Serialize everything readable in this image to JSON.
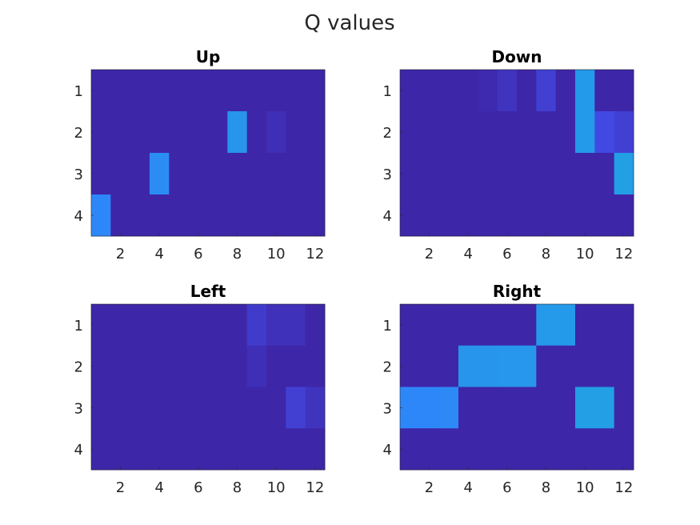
{
  "figure": {
    "title": "Q values"
  },
  "chart_data": [
    {
      "type": "heatmap",
      "title": "Up",
      "xlim": [
        0.5,
        12.5
      ],
      "ylim": [
        0.5,
        4.5
      ],
      "x_ticks": [
        "2",
        "4",
        "6",
        "8",
        "10",
        "12"
      ],
      "y_ticks": [
        "1",
        "2",
        "3",
        "4"
      ],
      "rows": 4,
      "cols": 12,
      "values": [
        [
          0,
          0,
          0,
          0,
          0,
          0,
          0,
          0,
          0,
          0,
          0,
          0
        ],
        [
          0,
          0,
          0,
          0,
          0,
          0,
          0,
          0.62,
          0,
          0.05,
          0,
          0
        ],
        [
          0,
          0,
          0,
          0.55,
          0,
          0,
          0,
          0,
          0,
          0,
          0,
          0
        ],
        [
          0.5,
          0,
          0,
          0,
          0,
          0,
          0,
          0,
          0,
          0,
          0,
          0
        ]
      ]
    },
    {
      "type": "heatmap",
      "title": "Down",
      "xlim": [
        0.5,
        12.5
      ],
      "ylim": [
        0.5,
        4.5
      ],
      "x_ticks": [
        "2",
        "4",
        "6",
        "8",
        "10",
        "12"
      ],
      "y_ticks": [
        "1",
        "2",
        "3",
        "4"
      ],
      "rows": 4,
      "cols": 12,
      "values": [
        [
          0,
          0,
          0,
          0,
          0.02,
          0.08,
          0,
          0.15,
          0,
          0.65,
          0,
          0
        ],
        [
          0,
          0,
          0,
          0,
          0,
          0,
          0,
          0,
          0,
          0.65,
          0.2,
          0.15
        ],
        [
          0,
          0,
          0,
          0,
          0,
          0,
          0,
          0,
          0,
          0,
          0,
          0.7
        ],
        [
          0,
          0,
          0,
          0,
          0,
          0,
          0,
          0,
          0,
          0,
          0,
          0
        ]
      ]
    },
    {
      "type": "heatmap",
      "title": "Left",
      "xlim": [
        0.5,
        12.5
      ],
      "ylim": [
        0.5,
        4.5
      ],
      "x_ticks": [
        "2",
        "4",
        "6",
        "8",
        "10",
        "12"
      ],
      "y_ticks": [
        "1",
        "2",
        "3",
        "4"
      ],
      "rows": 4,
      "cols": 12,
      "values": [
        [
          0,
          0,
          0,
          0,
          0,
          0,
          0,
          0,
          0.12,
          0.06,
          0.06,
          0
        ],
        [
          0,
          0,
          0,
          0,
          0,
          0,
          0,
          0,
          0.05,
          0,
          0,
          0
        ],
        [
          0,
          0,
          0,
          0,
          0,
          0,
          0,
          0,
          0,
          0,
          0.15,
          0.08
        ],
        [
          0,
          0,
          0,
          0,
          0,
          0,
          0,
          0,
          0,
          0,
          0,
          0
        ]
      ]
    },
    {
      "type": "heatmap",
      "title": "Right",
      "xlim": [
        0.5,
        12.5
      ],
      "ylim": [
        0.5,
        4.5
      ],
      "x_ticks": [
        "2",
        "4",
        "6",
        "8",
        "10",
        "12"
      ],
      "y_ticks": [
        "1",
        "2",
        "3",
        "4"
      ],
      "rows": 4,
      "cols": 12,
      "values": [
        [
          0,
          0,
          0,
          0,
          0,
          0,
          0,
          0.65,
          0.65,
          0,
          0,
          0
        ],
        [
          0,
          0,
          0,
          0.62,
          0.62,
          0.63,
          0.63,
          0,
          0,
          0,
          0,
          0
        ],
        [
          0.5,
          0.5,
          0.52,
          0,
          0,
          0,
          0,
          0,
          0,
          0.7,
          0.7,
          0
        ],
        [
          0,
          0,
          0,
          0,
          0,
          0,
          0,
          0,
          0,
          0,
          0,
          0
        ]
      ]
    }
  ],
  "colors": {
    "colormap": [
      "#3e26a8",
      "#4352f0",
      "#2e87f8",
      "#1fa5e0",
      "#22b3cc"
    ],
    "tick_text": "#262626",
    "axes_edge": "#262626"
  }
}
